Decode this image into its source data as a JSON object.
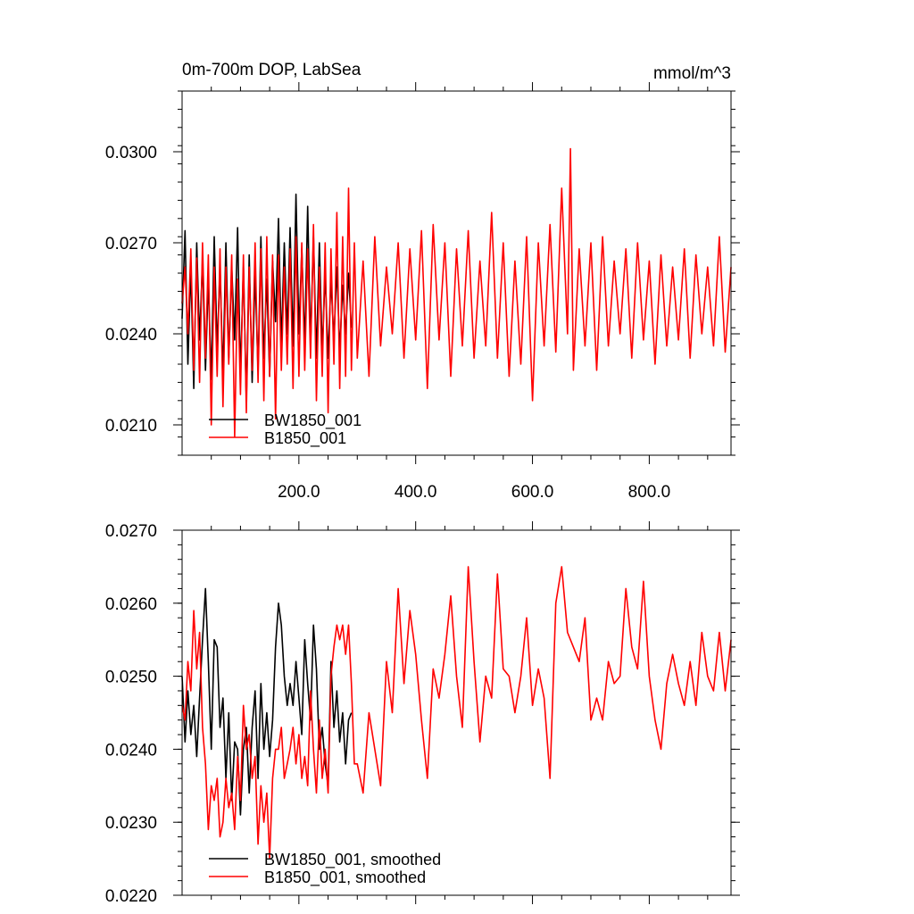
{
  "chart_data": [
    {
      "type": "line",
      "title": "0m-700m DOP, LabSea",
      "units_label": "mmol/m^3",
      "xlim": [
        0,
        940
      ],
      "ylim": [
        0.02,
        0.032
      ],
      "x_ticks": [
        200,
        400,
        600,
        800
      ],
      "x_tick_labels": [
        "200.0",
        "400.0",
        "600.0",
        "800.0"
      ],
      "y_ticks": [
        0.021,
        0.024,
        0.027,
        0.03
      ],
      "y_tick_labels": [
        "0.0210",
        "0.0240",
        "0.0270",
        "0.0300"
      ],
      "legend_position": "bottom-left",
      "grid": false,
      "series": [
        {
          "name": "BW1850_001",
          "color": "#000000",
          "x": [
            0,
            5,
            10,
            15,
            20,
            25,
            30,
            35,
            40,
            45,
            50,
            55,
            60,
            65,
            70,
            75,
            80,
            85,
            90,
            95,
            100,
            105,
            110,
            115,
            120,
            125,
            130,
            135,
            140,
            145,
            150,
            155,
            160,
            165,
            170,
            175,
            180,
            185,
            190,
            195,
            200,
            205,
            210,
            215,
            220,
            225,
            230,
            235,
            240,
            245,
            250,
            255,
            260,
            265,
            270,
            275,
            280,
            285,
            290
          ],
          "values": [
            0.0245,
            0.0274,
            0.023,
            0.0262,
            0.0222,
            0.027,
            0.0238,
            0.0264,
            0.0228,
            0.0258,
            0.0225,
            0.0272,
            0.0235,
            0.0262,
            0.0226,
            0.027,
            0.0232,
            0.0262,
            0.0238,
            0.0275,
            0.0226,
            0.0262,
            0.0218,
            0.0266,
            0.0224,
            0.026,
            0.0228,
            0.0272,
            0.0232,
            0.0258,
            0.0226,
            0.0264,
            0.0244,
            0.0278,
            0.0236,
            0.027,
            0.024,
            0.0275,
            0.0236,
            0.0286,
            0.024,
            0.0268,
            0.0236,
            0.0282,
            0.0236,
            0.0272,
            0.0232,
            0.027,
            0.0234,
            0.026,
            0.0232,
            0.0258,
            0.0238,
            0.0262,
            0.0234,
            0.0256,
            0.024,
            0.026,
            0.0242
          ]
        },
        {
          "name": "B1850_001",
          "color": "#ff0000",
          "x": [
            0,
            5,
            10,
            15,
            20,
            25,
            30,
            35,
            40,
            45,
            50,
            55,
            60,
            65,
            70,
            75,
            80,
            85,
            90,
            95,
            100,
            105,
            110,
            115,
            120,
            125,
            130,
            135,
            140,
            145,
            150,
            155,
            160,
            165,
            170,
            175,
            180,
            185,
            190,
            195,
            200,
            205,
            210,
            215,
            220,
            225,
            230,
            235,
            240,
            245,
            250,
            255,
            260,
            265,
            270,
            275,
            280,
            285,
            290,
            295,
            300,
            310,
            320,
            330,
            340,
            350,
            360,
            370,
            380,
            390,
            400,
            410,
            420,
            430,
            440,
            450,
            460,
            470,
            480,
            490,
            500,
            510,
            520,
            530,
            540,
            550,
            560,
            570,
            580,
            590,
            600,
            610,
            620,
            630,
            640,
            650,
            660,
            665,
            670,
            680,
            690,
            700,
            710,
            720,
            730,
            740,
            750,
            760,
            770,
            780,
            790,
            800,
            810,
            820,
            830,
            840,
            850,
            860,
            870,
            880,
            890,
            900,
            910,
            920,
            930,
            940
          ],
          "values": [
            0.025,
            0.0262,
            0.024,
            0.0268,
            0.0228,
            0.0265,
            0.0224,
            0.027,
            0.0232,
            0.0266,
            0.021,
            0.0262,
            0.0226,
            0.0268,
            0.0216,
            0.0262,
            0.023,
            0.0266,
            0.0206,
            0.0258,
            0.022,
            0.0266,
            0.0214,
            0.0262,
            0.0228,
            0.027,
            0.0224,
            0.0268,
            0.0218,
            0.0272,
            0.0226,
            0.0266,
            0.0212,
            0.0266,
            0.0228,
            0.0262,
            0.023,
            0.0268,
            0.0222,
            0.0272,
            0.0226,
            0.027,
            0.0228,
            0.0268,
            0.0232,
            0.0276,
            0.0218,
            0.0262,
            0.0226,
            0.027,
            0.0214,
            0.0268,
            0.023,
            0.028,
            0.0222,
            0.0272,
            0.0226,
            0.0288,
            0.0228,
            0.027,
            0.0232,
            0.0264,
            0.0226,
            0.0272,
            0.0236,
            0.0262,
            0.024,
            0.027,
            0.0232,
            0.0268,
            0.0238,
            0.0274,
            0.0222,
            0.0276,
            0.0238,
            0.027,
            0.0226,
            0.0268,
            0.0236,
            0.0274,
            0.0232,
            0.0264,
            0.0236,
            0.028,
            0.0232,
            0.027,
            0.0226,
            0.0264,
            0.023,
            0.0272,
            0.0218,
            0.027,
            0.0236,
            0.0276,
            0.0234,
            0.0288,
            0.024,
            0.0301,
            0.0228,
            0.0268,
            0.0236,
            0.027,
            0.0228,
            0.0272,
            0.0236,
            0.0264,
            0.024,
            0.0268,
            0.0232,
            0.027,
            0.0238,
            0.0264,
            0.023,
            0.0266,
            0.0236,
            0.0262,
            0.0238,
            0.0268,
            0.0232,
            0.0266,
            0.024,
            0.0262,
            0.0236,
            0.0272,
            0.0234,
            0.0262
          ]
        }
      ]
    },
    {
      "type": "line",
      "xlim": [
        0,
        940
      ],
      "ylim": [
        0.022,
        0.027
      ],
      "y_ticks": [
        0.022,
        0.023,
        0.024,
        0.025,
        0.026,
        0.027
      ],
      "y_tick_labels": [
        "0.0220",
        "0.0230",
        "0.0240",
        "0.0250",
        "0.0260",
        "0.0270"
      ],
      "legend_position": "bottom-left",
      "grid": false,
      "series": [
        {
          "name": "BW1850_001, smoothed",
          "color": "#000000",
          "x": [
            0,
            5,
            10,
            15,
            20,
            25,
            30,
            35,
            40,
            45,
            50,
            55,
            60,
            65,
            70,
            75,
            80,
            85,
            90,
            95,
            100,
            105,
            110,
            115,
            120,
            125,
            130,
            135,
            140,
            145,
            150,
            155,
            160,
            165,
            170,
            175,
            180,
            185,
            190,
            195,
            200,
            205,
            210,
            215,
            220,
            225,
            230,
            235,
            240,
            245,
            250,
            255,
            260,
            265,
            270,
            275,
            280,
            285,
            290
          ],
          "values": [
            0.025,
            0.0241,
            0.0248,
            0.0242,
            0.0246,
            0.0239,
            0.0247,
            0.0255,
            0.0262,
            0.0252,
            0.024,
            0.0255,
            0.0254,
            0.0243,
            0.0247,
            0.0236,
            0.0245,
            0.0233,
            0.0241,
            0.024,
            0.0231,
            0.024,
            0.0243,
            0.0234,
            0.0243,
            0.0248,
            0.0236,
            0.0249,
            0.024,
            0.0245,
            0.0239,
            0.0244,
            0.0254,
            0.026,
            0.0257,
            0.025,
            0.0246,
            0.0249,
            0.0246,
            0.0252,
            0.0247,
            0.0242,
            0.0255,
            0.0249,
            0.0244,
            0.0257,
            0.0251,
            0.024,
            0.0243,
            0.0238,
            0.0235,
            0.0252,
            0.0243,
            0.0248,
            0.0241,
            0.0245,
            0.0238,
            0.0244,
            0.0245
          ]
        },
        {
          "name": "B1850_001, smoothed",
          "color": "#ff0000",
          "x": [
            0,
            5,
            10,
            15,
            20,
            25,
            30,
            35,
            40,
            45,
            50,
            55,
            60,
            65,
            70,
            75,
            80,
            85,
            90,
            95,
            100,
            105,
            110,
            115,
            120,
            125,
            130,
            135,
            140,
            145,
            150,
            155,
            160,
            165,
            170,
            175,
            180,
            185,
            190,
            195,
            200,
            205,
            210,
            215,
            220,
            225,
            230,
            235,
            240,
            245,
            250,
            255,
            260,
            265,
            270,
            275,
            280,
            285,
            290,
            295,
            300,
            310,
            320,
            330,
            340,
            350,
            360,
            370,
            380,
            390,
            400,
            410,
            420,
            430,
            440,
            450,
            460,
            470,
            480,
            490,
            500,
            510,
            520,
            530,
            540,
            550,
            560,
            570,
            580,
            590,
            600,
            610,
            620,
            630,
            640,
            650,
            660,
            670,
            680,
            690,
            700,
            710,
            720,
            730,
            740,
            750,
            760,
            770,
            780,
            790,
            800,
            810,
            820,
            830,
            840,
            850,
            860,
            870,
            880,
            890,
            900,
            910,
            920,
            930,
            940
          ],
          "values": [
            0.0246,
            0.0244,
            0.0252,
            0.0248,
            0.0259,
            0.0251,
            0.0256,
            0.0243,
            0.0238,
            0.0229,
            0.0235,
            0.0233,
            0.0236,
            0.0228,
            0.023,
            0.0236,
            0.0232,
            0.0234,
            0.0229,
            0.0239,
            0.0233,
            0.0246,
            0.024,
            0.0242,
            0.0236,
            0.0239,
            0.0227,
            0.0235,
            0.023,
            0.0234,
            0.0225,
            0.0236,
            0.024,
            0.024,
            0.0243,
            0.0236,
            0.0238,
            0.024,
            0.0243,
            0.0238,
            0.0242,
            0.0236,
            0.0239,
            0.0235,
            0.0248,
            0.024,
            0.0234,
            0.0244,
            0.0236,
            0.024,
            0.0234,
            0.025,
            0.0254,
            0.0257,
            0.0255,
            0.0257,
            0.0253,
            0.0257,
            0.0249,
            0.0238,
            0.0238,
            0.0234,
            0.0245,
            0.024,
            0.0235,
            0.0252,
            0.0245,
            0.0262,
            0.0249,
            0.0259,
            0.0253,
            0.0244,
            0.0236,
            0.0251,
            0.0247,
            0.0253,
            0.0261,
            0.025,
            0.0243,
            0.0265,
            0.0252,
            0.0241,
            0.025,
            0.0247,
            0.0264,
            0.0251,
            0.025,
            0.0245,
            0.025,
            0.0258,
            0.0246,
            0.0251,
            0.0247,
            0.0236,
            0.026,
            0.0265,
            0.0256,
            0.0254,
            0.0252,
            0.0258,
            0.0244,
            0.0247,
            0.0244,
            0.0252,
            0.0249,
            0.025,
            0.0262,
            0.0254,
            0.0251,
            0.0263,
            0.025,
            0.0244,
            0.024,
            0.0249,
            0.0253,
            0.0249,
            0.0246,
            0.0252,
            0.0246,
            0.0256,
            0.025,
            0.0248,
            0.0256,
            0.0248,
            0.0255
          ]
        }
      ]
    }
  ]
}
